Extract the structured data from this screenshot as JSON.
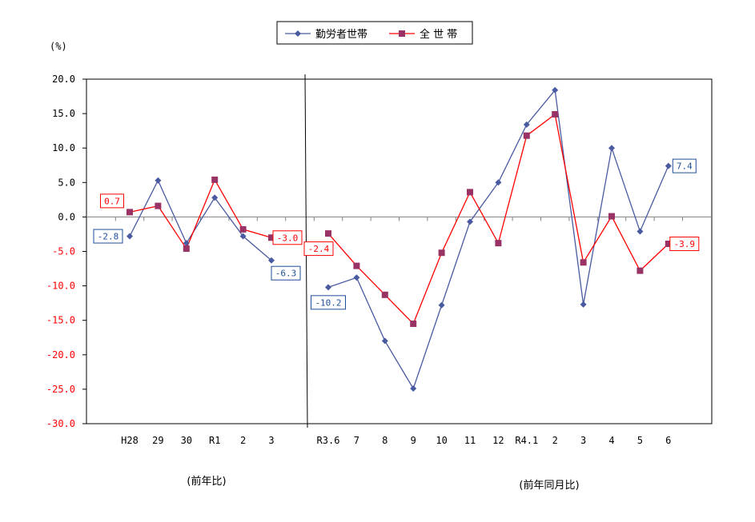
{
  "chart_data": {
    "type": "line",
    "unit_label": "(%)",
    "ylim": [
      -30,
      20
    ],
    "ytick_step": 5,
    "grid": false,
    "legend_position": "top-center",
    "panels": [
      {
        "caption": "(前年比)",
        "categories": [
          "H28",
          "29",
          "30",
          "R1",
          "2",
          "3"
        ],
        "series": [
          {
            "name": "勤労者世帯",
            "color": "#4a5aa0",
            "marker": "diamond",
            "values": [
              -2.8,
              5.3,
              -3.8,
              2.8,
              -2.8,
              -6.3
            ]
          },
          {
            "name": "全 世 帯",
            "color": "#ff0000",
            "marker_color": "#993366",
            "marker": "square",
            "values": [
              0.7,
              1.6,
              -4.6,
              5.4,
              -1.8,
              -3.0
            ]
          }
        ]
      },
      {
        "caption": "(前年同月比)",
        "categories": [
          "R3.6",
          "7",
          "8",
          "9",
          "10",
          "11",
          "12",
          "R4.1",
          "2",
          "3",
          "4",
          "5",
          "6"
        ],
        "series": [
          {
            "name": "勤労者世帯",
            "color": "#4a5aa0",
            "marker": "diamond",
            "values": [
              -10.2,
              -8.8,
              -18.0,
              -24.9,
              -12.8,
              -0.7,
              5.0,
              13.4,
              18.4,
              -12.7,
              10.0,
              -2.1,
              7.4
            ]
          },
          {
            "name": "全 世 帯",
            "color": "#ff0000",
            "marker_color": "#993366",
            "marker": "square",
            "values": [
              -2.4,
              -7.1,
              -11.3,
              -15.5,
              -5.2,
              3.6,
              -3.8,
              11.8,
              14.9,
              -6.6,
              0.1,
              -7.8,
              -3.9
            ]
          }
        ]
      }
    ],
    "data_labels": [
      {
        "panel": 0,
        "series": 0,
        "index": 0,
        "text": "-2.8",
        "color": "#1f4e9a",
        "place": "left"
      },
      {
        "panel": 0,
        "series": 1,
        "index": 0,
        "text": "0.7",
        "color": "#ff0000",
        "place": "upper-left"
      },
      {
        "panel": 0,
        "series": 0,
        "index": 5,
        "text": "-6.3",
        "color": "#1f4e9a",
        "place": "lower-right"
      },
      {
        "panel": 0,
        "series": 1,
        "index": 5,
        "text": "-3.0",
        "color": "#ff0000",
        "place": "right"
      },
      {
        "panel": 1,
        "series": 0,
        "index": 0,
        "text": "-10.2",
        "color": "#1f4e9a",
        "place": "below"
      },
      {
        "panel": 1,
        "series": 1,
        "index": 0,
        "text": "-2.4",
        "color": "#ff0000",
        "place": "lower-left"
      },
      {
        "panel": 1,
        "series": 0,
        "index": 12,
        "text": "7.4",
        "color": "#1f4e9a",
        "place": "right"
      },
      {
        "panel": 1,
        "series": 1,
        "index": 12,
        "text": "-3.9",
        "color": "#ff0000",
        "place": "right"
      }
    ]
  }
}
